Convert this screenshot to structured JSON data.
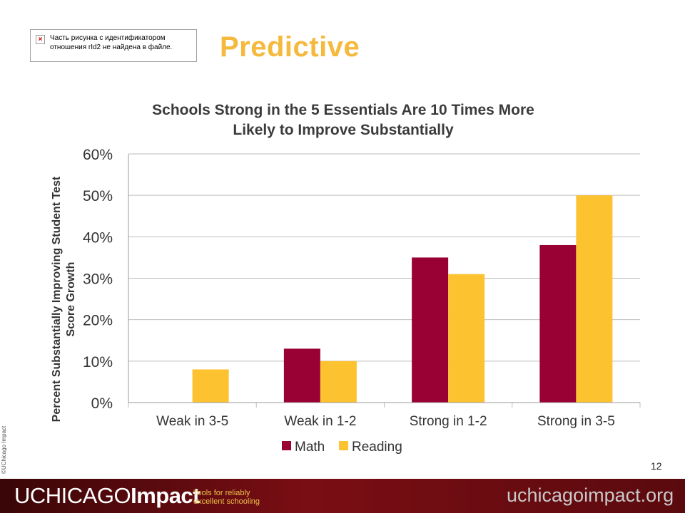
{
  "placeholder_image": {
    "message_line1": "Часть рисунка с идентификатором",
    "message_line2": "отношения rId2 не найдена в файле."
  },
  "slide_title": "Predictive",
  "copyright": "©UChicago Impact",
  "page_number": "12",
  "footer": {
    "logo_part1": "UCHICAGO",
    "logo_part2": "Impact",
    "tagline_line1": "Tools for reliably",
    "tagline_line2": "excellent schooling",
    "website": "uchicagoimpact.org"
  },
  "chart_data": {
    "type": "bar",
    "title_line1": "Schools Strong in the 5 Essentials Are 10 Times More",
    "title_line2": "Likely to Improve Substantially",
    "ylabel_line1": "Percent Substantially Improving Student Test",
    "ylabel_line2": "Score Growth",
    "xlabel": "",
    "categories": [
      "Weak in 3-5",
      "Weak in 1-2",
      "Strong in 1-2",
      "Strong in 3-5"
    ],
    "series": [
      {
        "name": "Math",
        "color": "#990033",
        "values": [
          null,
          13,
          35,
          38
        ]
      },
      {
        "name": "Reading",
        "color": "#fcc230",
        "values": [
          8,
          10,
          31,
          50
        ]
      }
    ],
    "ylim": [
      0,
      60
    ],
    "yticks": [
      0,
      10,
      20,
      30,
      40,
      50,
      60
    ],
    "ytick_labels": [
      "0%",
      "10%",
      "20%",
      "30%",
      "40%",
      "50%",
      "60%"
    ],
    "grid": true,
    "legend_position": "bottom"
  }
}
